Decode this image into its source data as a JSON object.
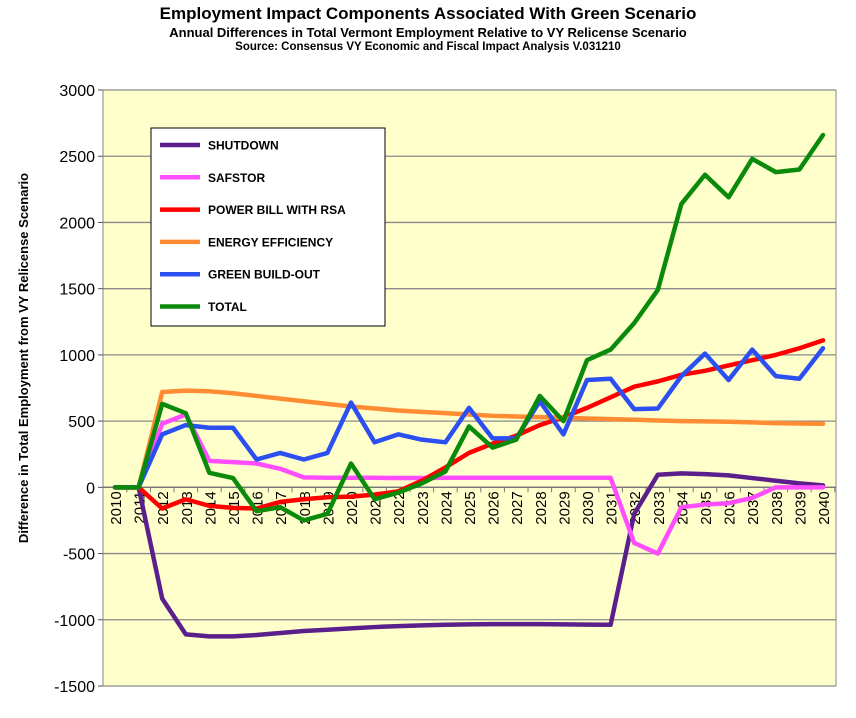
{
  "chart_data": {
    "type": "line",
    "title": "Employment Impact Components Associated With Green Scenario",
    "subtitle": "Annual Differences in Total Vermont Employment Relative to VY Relicense Scenario",
    "source": "Source:  Consensus VY Economic and Fiscal Impact Analysis V.031210",
    "xlabel": "",
    "ylabel": "Difference in Total Employment from VY Relicense Scenario",
    "ylim": [
      -1500,
      3000
    ],
    "yticks": [
      -1500,
      -1000,
      -500,
      0,
      500,
      1000,
      1500,
      2000,
      2500,
      3000
    ],
    "grid": true,
    "plot_background": "#FFFFCC",
    "legend_position": "top-left",
    "x": [
      2010,
      2011,
      2012,
      2013,
      2014,
      2015,
      2016,
      2017,
      2018,
      2019,
      2020,
      2021,
      2022,
      2023,
      2024,
      2025,
      2026,
      2027,
      2028,
      2029,
      2030,
      2031,
      2032,
      2033,
      2034,
      2035,
      2036,
      2037,
      2038,
      2039,
      2040
    ],
    "series": [
      {
        "name": "SHUTDOWN",
        "color": "#5B1F8C",
        "values": [
          0,
          0,
          -840,
          -1110,
          -1125,
          -1125,
          -1115,
          -1100,
          -1085,
          -1075,
          -1065,
          -1055,
          -1048,
          -1042,
          -1038,
          -1035,
          -1033,
          -1033,
          -1033,
          -1035,
          -1037,
          -1038,
          -200,
          95,
          105,
          100,
          90,
          70,
          50,
          30,
          15
        ]
      },
      {
        "name": "SAFSTOR",
        "color": "#FF4DFF",
        "values": [
          0,
          0,
          480,
          550,
          200,
          190,
          180,
          140,
          75,
          72,
          72,
          72,
          70,
          70,
          72,
          72,
          72,
          72,
          72,
          72,
          72,
          72,
          -420,
          -500,
          -150,
          -130,
          -120,
          -80,
          0,
          0,
          0
        ]
      },
      {
        "name": "POWER BILL WITH RSA",
        "color": "#FF0000",
        "values": [
          0,
          0,
          -160,
          -90,
          -140,
          -155,
          -160,
          -110,
          -90,
          -75,
          -70,
          -55,
          -30,
          50,
          150,
          260,
          330,
          390,
          470,
          530,
          600,
          680,
          760,
          800,
          850,
          880,
          920,
          960,
          1000,
          1050,
          1110
        ]
      },
      {
        "name": "ENERGY EFFICIENCY",
        "color": "#FF8C33",
        "values": [
          0,
          0,
          720,
          730,
          725,
          710,
          690,
          670,
          650,
          630,
          610,
          595,
          580,
          570,
          560,
          550,
          540,
          535,
          530,
          525,
          520,
          515,
          510,
          505,
          500,
          498,
          495,
          490,
          485,
          482,
          480
        ]
      },
      {
        "name": "GREEN BUILD-OUT",
        "color": "#2B4FF0",
        "values": [
          0,
          0,
          400,
          470,
          450,
          450,
          210,
          260,
          210,
          260,
          640,
          340,
          400,
          360,
          340,
          600,
          370,
          370,
          650,
          400,
          810,
          820,
          590,
          595,
          840,
          1010,
          810,
          1040,
          840,
          820,
          1050
        ]
      },
      {
        "name": "TOTAL",
        "color": "#0A8A0A",
        "values": [
          0,
          0,
          630,
          560,
          110,
          70,
          -180,
          -150,
          -250,
          -200,
          180,
          -90,
          -40,
          30,
          120,
          460,
          300,
          360,
          690,
          500,
          960,
          1040,
          1240,
          1490,
          2140,
          2360,
          2190,
          2480,
          2380,
          2400,
          2660
        ]
      }
    ]
  }
}
